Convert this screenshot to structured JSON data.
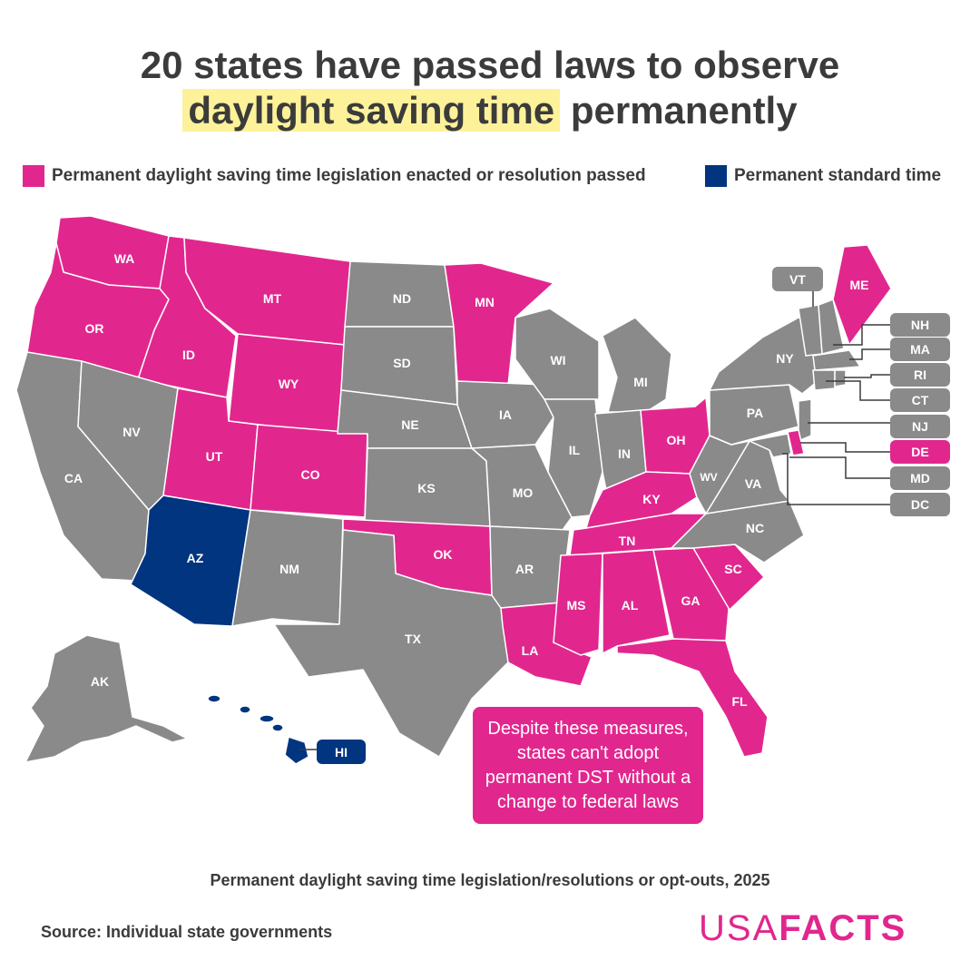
{
  "title": {
    "line1": "20 states have passed laws to observe",
    "line2_highlight": "daylight saving time",
    "line2_rest": " permanently"
  },
  "legend": {
    "dst_label": "Permanent daylight saving time legislation enacted or resolution passed",
    "standard_label": "Permanent standard time"
  },
  "colors": {
    "dst": "#e1278e",
    "standard": "#013580",
    "none": "#8a8a8a",
    "highlight": "#fdf29a"
  },
  "states": {
    "WA": "dst",
    "OR": "dst",
    "ID": "dst",
    "MT": "dst",
    "WY": "dst",
    "UT": "dst",
    "CO": "dst",
    "MN": "dst",
    "OK": "dst",
    "LA": "dst",
    "MS": "dst",
    "AL": "dst",
    "TN": "dst",
    "KY": "dst",
    "OH": "dst",
    "GA": "dst",
    "SC": "dst",
    "FL": "dst",
    "ME": "dst",
    "DE": "dst",
    "AZ": "standard",
    "HI": "standard",
    "CA": "none",
    "NV": "none",
    "NM": "none",
    "TX": "none",
    "ND": "none",
    "SD": "none",
    "NE": "none",
    "KS": "none",
    "IA": "none",
    "MO": "none",
    "AR": "none",
    "WI": "none",
    "IL": "none",
    "IN": "none",
    "MI": "none",
    "WV": "none",
    "VA": "none",
    "NC": "none",
    "PA": "none",
    "NY": "none",
    "AK": "none",
    "VT": "none",
    "NH": "none",
    "MA": "none",
    "RI": "none",
    "CT": "none",
    "NJ": "none",
    "MD": "none",
    "DC": "none"
  },
  "callout": "Despite these measures, states can't adopt permanent DST without a change to federal laws",
  "subtitle": "Permanent daylight saving time legislation/resolutions or opt-outs, 2025",
  "source": "Source: Individual state governments",
  "logo": {
    "part1": "USA",
    "part2": "FACTS"
  }
}
